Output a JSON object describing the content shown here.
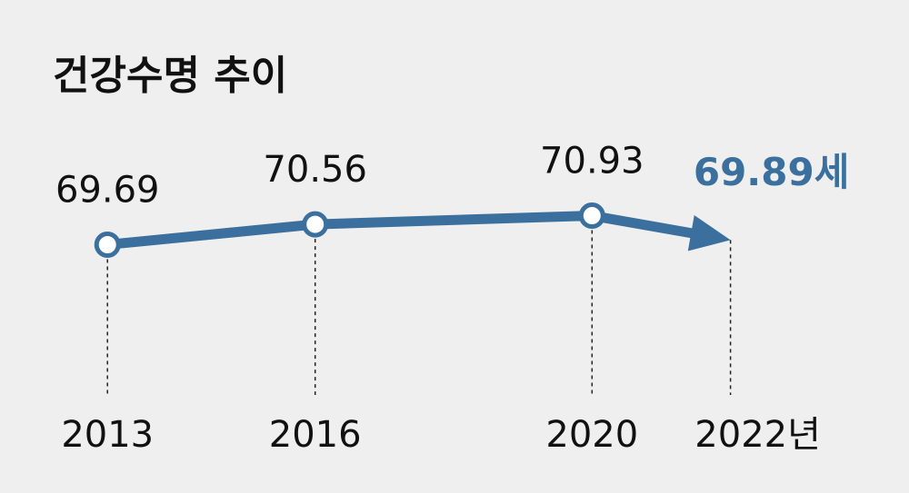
{
  "chart_data": {
    "type": "line",
    "title": "건강수명 추이",
    "x": [
      2013,
      2016,
      2020,
      2022
    ],
    "values": [
      69.69,
      70.56,
      70.93,
      69.89
    ],
    "value_labels": [
      "69.69",
      "70.56",
      "70.93",
      "69.89세"
    ],
    "color": "#3b6f9d",
    "xlim": [
      2011.5,
      2024.5
    ],
    "xticks": [
      2013,
      2016,
      2020,
      {
        "value": 2022,
        "label": "2022년"
      }
    ],
    "ylim": [
      68,
      72
    ]
  }
}
